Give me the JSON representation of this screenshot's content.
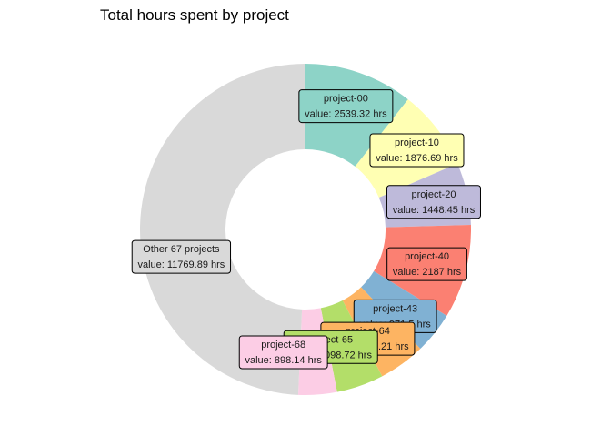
{
  "chart_data": {
    "type": "pie",
    "variant": "donut",
    "title": "Total hours spent by project",
    "value_prefix": "value: ",
    "unit": "hrs",
    "grid": false,
    "legend": "none",
    "slices": [
      {
        "label": "project-00",
        "value": 2539.32,
        "value_text": "2539.32",
        "color": "#8DD3C7"
      },
      {
        "label": "project-10",
        "value": 1876.69,
        "value_text": "1876.69",
        "color": "#FFFFB3"
      },
      {
        "label": "project-20",
        "value": 1448.45,
        "value_text": "1448.45",
        "color": "#BEBADA"
      },
      {
        "label": "project-40",
        "value": 2187,
        "value_text": "2187",
        "color": "#FB8072"
      },
      {
        "label": "project-43",
        "value": 971.5,
        "value_text": "971.5",
        "color": "#80B1D3"
      },
      {
        "label": "project-64",
        "value": 1085.21,
        "value_text": "1085.21",
        "color": "#FDB462"
      },
      {
        "label": "project-65",
        "value": 1098.72,
        "value_text": "1098.72",
        "color": "#B3DE69"
      },
      {
        "label": "project-68",
        "value": 898.14,
        "value_text": "898.14",
        "color": "#FCCDE5"
      },
      {
        "label": "Other 67 projects",
        "value": 11769.89,
        "value_text": "11769.89",
        "color": "#D9D9D9"
      }
    ]
  }
}
